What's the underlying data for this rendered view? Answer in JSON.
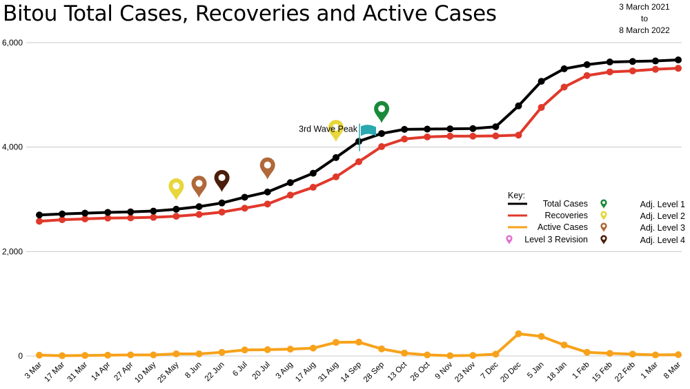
{
  "header": {
    "title": "Bitou Total Cases, Recoveries and Active Cases",
    "date_start": "3 March 2021",
    "date_to": "to",
    "date_end": "8 March 2022"
  },
  "colors": {
    "total": "#000000",
    "recoveries": "#e0392b",
    "active": "#f7a21b",
    "adj_level_1": "#1a8a3a",
    "adj_level_2": "#e8d63a",
    "adj_level_3": "#b0683a",
    "adj_level_4": "#4a1e0a",
    "level_3_revision": "#e070d0",
    "wave_flag": "#2aa8b0",
    "grid": "#c8c8c8"
  },
  "chart_data": {
    "type": "line",
    "title": "Bitou Total Cases, Recoveries and Active Cases",
    "categories": [
      "3 Mar",
      "17 Mar",
      "31 Mar",
      "14 Apr",
      "27 Apr",
      "10 May",
      "25 May",
      "8 Jun",
      "22 Jun",
      "6 Jul",
      "20 Jul",
      "3 Aug",
      "17 Aug",
      "31 Aug",
      "14 Sep",
      "28 Sep",
      "13 Oct",
      "26 Oct",
      "9 Nov",
      "23 Nov",
      "7 Dec",
      "20 Dec",
      "5 Jan",
      "18 Jan",
      "1 Feb",
      "15 Feb",
      "22 Feb",
      "1 Mar",
      "8 Mar"
    ],
    "y_ticks": [
      0,
      2000,
      4000,
      6000
    ],
    "y_tick_labels": [
      "0",
      "2,000",
      "4,000",
      "6,000"
    ],
    "ylim": [
      0,
      6000
    ],
    "grid": true,
    "legend_position": "right",
    "series": [
      {
        "name": "Total Cases",
        "color_key": "total",
        "values": [
          2700,
          2720,
          2735,
          2750,
          2760,
          2775,
          2810,
          2860,
          2930,
          3040,
          3140,
          3320,
          3500,
          3800,
          4110,
          4260,
          4340,
          4345,
          4350,
          4355,
          4390,
          4790,
          5260,
          5500,
          5580,
          5630,
          5640,
          5650,
          5670
        ]
      },
      {
        "name": "Recoveries",
        "color_key": "recoveries",
        "values": [
          2580,
          2610,
          2625,
          2640,
          2645,
          2655,
          2675,
          2710,
          2755,
          2830,
          2910,
          3080,
          3230,
          3430,
          3720,
          4010,
          4155,
          4195,
          4210,
          4210,
          4215,
          4230,
          4760,
          5150,
          5370,
          5440,
          5460,
          5490,
          5510
        ]
      },
      {
        "name": "Active Cases",
        "color_key": "active",
        "values": [
          15,
          5,
          10,
          15,
          20,
          20,
          40,
          40,
          70,
          115,
          120,
          130,
          150,
          260,
          265,
          135,
          55,
          20,
          5,
          10,
          35,
          425,
          375,
          210,
          70,
          50,
          35,
          20,
          25
        ]
      }
    ],
    "annotations": [
      {
        "label": "3rd Wave Peak",
        "category": "14 Sep",
        "y": 4450
      }
    ],
    "markers": [
      {
        "type": "adj_level_2",
        "category": "25 May",
        "y": 2980
      },
      {
        "type": "adj_level_3",
        "category": "8 Jun",
        "y": 3030
      },
      {
        "type": "adj_level_4",
        "category": "22 Jun",
        "y": 3140
      },
      {
        "type": "adj_level_3",
        "category": "20 Jul",
        "y": 3380
      },
      {
        "type": "adj_level_2",
        "category": "31 Aug",
        "y": 4100
      },
      {
        "type": "adj_level_1",
        "category": "28 Sep",
        "y": 4460
      }
    ],
    "legend": {
      "title": "Key:",
      "entries": [
        {
          "label": "Total Cases",
          "kind": "line",
          "color_key": "total"
        },
        {
          "label": "Recoveries",
          "kind": "line",
          "color_key": "recoveries"
        },
        {
          "label": "Active Cases",
          "kind": "line",
          "color_key": "active"
        },
        {
          "label": "Level 3 Revision",
          "kind": "pin",
          "color_key": "level_3_revision"
        },
        {
          "label": "Adj. Level 1",
          "kind": "pin",
          "color_key": "adj_level_1"
        },
        {
          "label": "Adj. Level 2",
          "kind": "pin",
          "color_key": "adj_level_2"
        },
        {
          "label": "Adj. Level 3",
          "kind": "pin",
          "color_key": "adj_level_3"
        },
        {
          "label": "Adj. Level 4",
          "kind": "pin",
          "color_key": "adj_level_4"
        }
      ]
    }
  }
}
